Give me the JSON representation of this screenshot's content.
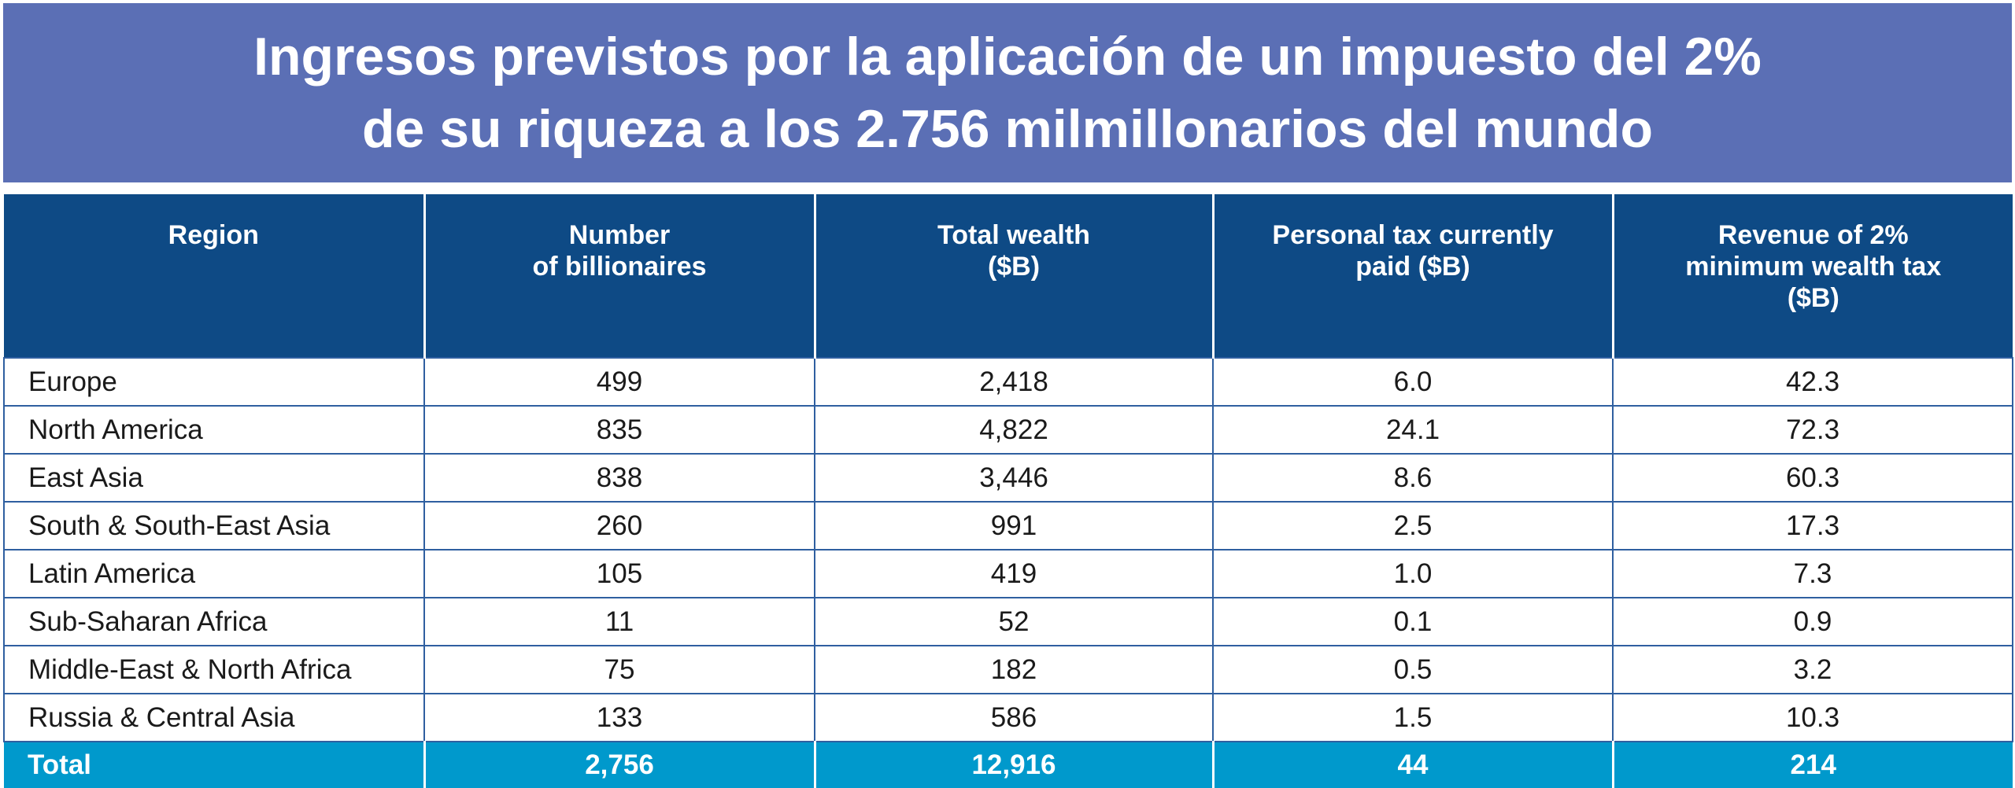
{
  "title": {
    "line1": "Ingresos previstos por la aplicación de un impuesto del 2%",
    "line2": "de su riqueza a los 2.756 milmillonarios del mundo"
  },
  "table": {
    "headers": [
      [
        "Region"
      ],
      [
        "Number",
        "of billionaires"
      ],
      [
        "Total wealth",
        "($B)"
      ],
      [
        "Personal tax currently",
        "paid ($B)"
      ],
      [
        "Revenue of 2%",
        "minimum wealth tax",
        "($B)"
      ]
    ],
    "rows": [
      [
        "Europe",
        "499",
        "2,418",
        "6.0",
        "42.3"
      ],
      [
        "North America",
        "835",
        "4,822",
        "24.1",
        "72.3"
      ],
      [
        "East Asia",
        "838",
        "3,446",
        "8.6",
        "60.3"
      ],
      [
        "South & South-East Asia",
        "260",
        "991",
        "2.5",
        "17.3"
      ],
      [
        "Latin America",
        "105",
        "419",
        "1.0",
        "7.3"
      ],
      [
        "Sub-Saharan Africa",
        "11",
        "52",
        "0.1",
        "0.9"
      ],
      [
        "Middle-East & North Africa",
        "75",
        "182",
        "0.5",
        "3.2"
      ],
      [
        "Russia & Central Asia",
        "133",
        "586",
        "1.5",
        "10.3"
      ]
    ],
    "total": [
      "Total",
      "2,756",
      "12,916",
      "44",
      "214"
    ]
  },
  "colors": {
    "banner": "#5b6fb5",
    "header": "#0e4a85",
    "total_row": "#0099cc",
    "grid": "#2f5fa0"
  }
}
